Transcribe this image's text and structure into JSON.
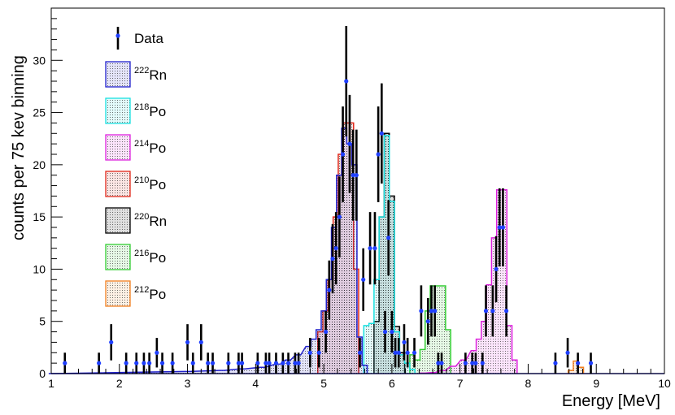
{
  "chart_data": {
    "type": "histogram",
    "xlabel": "Energy [MeV]",
    "ylabel": "counts per 75 kev binning",
    "xlim": [
      1,
      10
    ],
    "ylim": [
      0,
      35
    ],
    "x_ticks": [
      "1",
      "2",
      "3",
      "4",
      "5",
      "6",
      "7",
      "8",
      "9",
      "10"
    ],
    "y_ticks": [
      "0",
      "5",
      "10",
      "15",
      "20",
      "25",
      "30"
    ],
    "legend_position": "top-left",
    "bin_width_mev": 0.075,
    "legend": [
      {
        "sup": "",
        "name": "Data"
      },
      {
        "sup": "222",
        "name": "Rn"
      },
      {
        "sup": "218",
        "name": "Po"
      },
      {
        "sup": "214",
        "name": "Po"
      },
      {
        "sup": "210",
        "name": "Po"
      },
      {
        "sup": "220",
        "name": "Rn"
      },
      {
        "sup": "216",
        "name": "Po"
      },
      {
        "sup": "212",
        "name": "Po"
      }
    ],
    "stack_series": [
      {
        "label": "212Po",
        "color": "#f28020",
        "x": [
          8.625,
          8.7,
          8.775
        ],
        "y": [
          0.3,
          1.2,
          0.6
        ]
      },
      {
        "label": "216Po",
        "color": "#33cc33",
        "x": [
          6.3,
          6.375,
          6.45,
          6.525,
          6.6,
          6.675,
          6.75,
          6.825
        ],
        "y": [
          1.8,
          1.3,
          2.3,
          6.0,
          8.4,
          8.4,
          8.4,
          4.2
        ]
      },
      {
        "label": "220Rn",
        "color": "#000000",
        "x": [
          5.775,
          5.85,
          5.925,
          6.0,
          6.075,
          6.15
        ],
        "y": [
          5.0,
          15.0,
          23.0,
          17.0,
          4.5,
          2.0
        ]
      },
      {
        "label": "210Po",
        "color": "#e0281a",
        "x": [
          4.95,
          5.025,
          5.1,
          5.175,
          5.25,
          5.325,
          5.4,
          5.475
        ],
        "y": [
          4.0,
          6.0,
          9.0,
          15.0,
          21.0,
          24.0,
          24.0,
          10.0
        ]
      },
      {
        "label": "214Po",
        "color": "#dd22dd",
        "x": [
          6.45,
          6.6,
          6.75,
          6.9,
          7.05,
          7.2,
          7.275,
          7.35,
          7.425,
          7.5,
          7.575,
          7.65,
          7.725,
          7.8
        ],
        "y": [
          0.05,
          0.1,
          0.3,
          0.7,
          1.3,
          2.2,
          3.3,
          5.0,
          8.5,
          13.0,
          17.6,
          17.6,
          4.6,
          1.3
        ]
      },
      {
        "label": "218Po",
        "color": "#19e0e0",
        "x": [
          5.625,
          5.7,
          5.775,
          5.85,
          5.925,
          6.0,
          6.075,
          6.15,
          6.225,
          6.3
        ],
        "y": [
          4.6,
          4.8,
          9.0,
          15.0,
          22.8,
          16.5,
          4.0,
          1.8,
          1.0,
          0.4
        ]
      },
      {
        "label": "222Rn",
        "color": "#2222cc",
        "x": [
          1.0,
          3.0,
          3.5,
          3.8,
          4.1,
          4.325,
          4.475,
          4.625,
          4.775,
          4.85,
          4.925,
          5.0,
          5.075,
          5.15,
          5.225,
          5.3,
          5.375,
          5.45,
          5.525,
          5.6
        ],
        "y": [
          0.0,
          0.2,
          0.3,
          0.45,
          0.6,
          0.9,
          1.3,
          1.8,
          2.6,
          3.3,
          4.2,
          6.0,
          9.0,
          14.0,
          19.0,
          23.5,
          22.0,
          20.0,
          3.5,
          0.8
        ]
      }
    ],
    "data_points": {
      "x": [
        1.2,
        1.7,
        1.88,
        2.1,
        2.25,
        2.36,
        2.44,
        2.55,
        2.63,
        2.78,
        3.0,
        3.08,
        3.2,
        3.3,
        3.37,
        3.6,
        3.75,
        3.8,
        4.03,
        4.15,
        4.2,
        4.3,
        4.4,
        4.48,
        4.58,
        4.63,
        4.8,
        4.93,
        5.03,
        5.08,
        5.13,
        5.18,
        5.23,
        5.28,
        5.33,
        5.38,
        5.43,
        5.48,
        5.53,
        5.58,
        5.68,
        5.75,
        5.8,
        5.85,
        5.9,
        5.95,
        6.0,
        6.05,
        6.1,
        6.18,
        6.23,
        6.33,
        6.43,
        6.53,
        6.58,
        6.63,
        6.68,
        6.73,
        7.08,
        7.18,
        7.23,
        7.33,
        7.38,
        7.48,
        7.53,
        7.58,
        7.63,
        7.68,
        8.4,
        8.58,
        8.73,
        8.92
      ],
      "y": [
        1,
        1,
        3,
        1,
        1,
        1,
        1,
        2,
        1,
        1,
        3,
        1,
        3,
        1,
        1,
        1,
        1,
        1,
        1,
        1,
        1,
        1,
        1,
        1,
        1,
        1,
        2,
        2,
        4,
        8,
        11,
        12,
        15,
        21,
        28,
        22,
        19,
        19,
        2,
        9,
        12,
        12,
        21,
        23,
        4,
        13,
        4,
        2,
        2,
        3,
        2,
        2,
        6,
        5,
        6,
        6,
        1,
        1,
        1,
        1,
        1,
        1,
        6,
        6,
        10,
        14,
        14,
        6,
        1,
        2,
        1,
        1
      ]
    }
  }
}
